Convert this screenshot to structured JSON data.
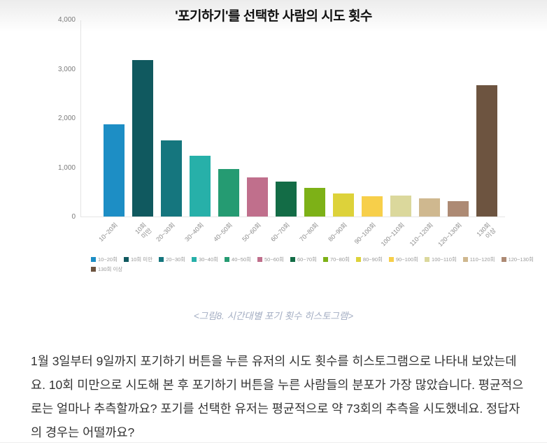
{
  "page": {
    "caption": "<그림8. 시간대별 포기 횟수 히스토그램>",
    "paragraph": "1월 3일부터 9일까지 포기하기 버튼을 누른 유저의 시도 횟수를 히스토그램으로 나타내 보았는데요. 10회 미만으로 시도해 본 후 포기하기 버튼을 누른 사람들의 분포가 가장 많았습니다. 평균적으로는 얼마나 추측할까요?  포기를 선택한 유저는 평균적으로 약 73회의 추측을 시도했네요. 정답자의 경우는 어떨까요?"
  },
  "chart_data": {
    "type": "bar",
    "title": "'포기하기'를 선택한 사람의 시도 횟수",
    "categories": [
      "10~20회",
      "10회 미만",
      "20~30회",
      "30~40회",
      "40~50회",
      "50~60회",
      "60~70회",
      "70~80회",
      "80~90회",
      "90~100회",
      "100~110회",
      "110~120회",
      "120~130회",
      "130회 이상"
    ],
    "axis_tick_labels": [
      "10~20회",
      "10회\n미만",
      "20~30회",
      "30~40회",
      "40~50회",
      "50~60회",
      "60~70회",
      "70~80회",
      "80~90회",
      "90~100회",
      "100~110회",
      "110~120회",
      "120~130회",
      "130회\n이상"
    ],
    "values": [
      1870,
      3180,
      1540,
      1240,
      960,
      790,
      705,
      585,
      475,
      405,
      425,
      370,
      310,
      2670
    ],
    "colors": [
      "#1d8ec5",
      "#10595f",
      "#15767e",
      "#27b0a9",
      "#259b72",
      "#c06f8c",
      "#136c46",
      "#7db117",
      "#ddd23a",
      "#f7cf4a",
      "#dbd89c",
      "#cfb88f",
      "#ad8a74",
      "#6d5440"
    ],
    "xlabel": "",
    "ylabel": "",
    "ylim": [
      0,
      4000
    ],
    "yticks": [
      {
        "value": 0,
        "label": "0"
      },
      {
        "value": 1000,
        "label": "1,000"
      },
      {
        "value": 2000,
        "label": "2,000"
      },
      {
        "value": 3000,
        "label": "3,000"
      },
      {
        "value": 4000,
        "label": "4,000"
      }
    ],
    "grid": false,
    "legend_position": "bottom",
    "legend_rows": [
      13,
      1
    ]
  }
}
